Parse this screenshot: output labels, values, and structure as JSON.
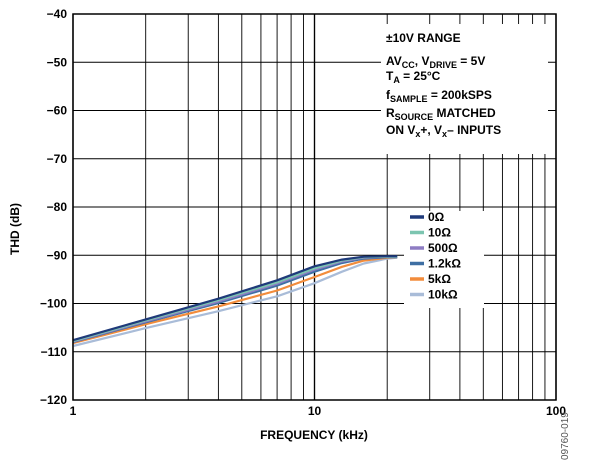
{
  "chart_data": {
    "type": "line",
    "title": "",
    "xlabel": "FREQUENCY (kHz)",
    "ylabel": "THD (dB)",
    "xscale": "log",
    "xlim": [
      1,
      100
    ],
    "ylim": [
      -120,
      -40
    ],
    "grid": true,
    "x_tick_labels": [
      "1",
      "10",
      "100"
    ],
    "y_ticks": [
      -40,
      -50,
      -60,
      -70,
      -80,
      -90,
      -100,
      -110,
      -120
    ],
    "y_tick_labels": [
      "−40",
      "−50",
      "−60",
      "−70",
      "−80",
      "−90",
      "−100",
      "−110",
      "−120"
    ],
    "annotation": {
      "line1": "±10V RANGE",
      "line2_a": "AV",
      "line2_sub1": "CC",
      "line2_b": ", V",
      "line2_sub2": "DRIVE",
      "line2_c": " = 5V",
      "line3_a": "T",
      "line3_sub": "A",
      "line3_b": " = 25°C",
      "line4_a": "f",
      "line4_sub": "SAMPLE",
      "line4_b": " = 200kSPS",
      "line5_a": "R",
      "line5_sub": "SOURCE",
      "line5_b": " MATCHED",
      "line6_a": "ON V",
      "line6_sub1": "x",
      "line6_b": "+,  V",
      "line6_sub2": "x",
      "line6_c": "– INPUTS"
    },
    "legend_position": "right",
    "series": [
      {
        "name": "0Ω",
        "color": "#1f3a7a",
        "x": [
          1,
          2,
          4,
          7,
          10,
          13,
          16,
          20,
          22
        ],
        "y": [
          -107.6,
          -103.3,
          -99.0,
          -95.2,
          -92.3,
          -90.9,
          -90.3,
          -90.2,
          -90.2
        ]
      },
      {
        "name": "10Ω",
        "color": "#7cc5b0",
        "x": [
          1,
          2,
          4,
          7,
          10,
          13,
          16,
          20,
          22
        ],
        "y": [
          -107.8,
          -103.5,
          -99.3,
          -95.6,
          -92.7,
          -91.1,
          -90.4,
          -90.3,
          -90.3
        ]
      },
      {
        "name": "500Ω",
        "color": "#8e7cc3",
        "x": [
          1,
          2,
          4,
          7,
          10,
          13,
          16,
          20,
          22
        ],
        "y": [
          -107.9,
          -103.7,
          -99.6,
          -95.9,
          -93.0,
          -91.3,
          -90.5,
          -90.3,
          -90.3
        ]
      },
      {
        "name": "1.2kΩ",
        "color": "#3e6fa3",
        "x": [
          1,
          2,
          4,
          7,
          10,
          13,
          16,
          20,
          22
        ],
        "y": [
          -108.0,
          -103.9,
          -99.9,
          -96.3,
          -93.4,
          -91.6,
          -90.7,
          -90.4,
          -90.4
        ]
      },
      {
        "name": "5kΩ",
        "color": "#f28c3c",
        "x": [
          1,
          2,
          4,
          7,
          10,
          13,
          16,
          20,
          22
        ],
        "y": [
          -108.2,
          -104.3,
          -100.6,
          -97.3,
          -94.5,
          -92.4,
          -91.1,
          -90.5,
          -90.4
        ]
      },
      {
        "name": "10kΩ",
        "color": "#a9bcd8",
        "x": [
          1,
          2,
          4,
          7,
          10,
          13,
          16,
          20,
          22
        ],
        "y": [
          -108.8,
          -105.1,
          -101.6,
          -98.5,
          -95.8,
          -93.4,
          -91.7,
          -90.7,
          -90.5
        ]
      }
    ]
  },
  "figure_id": "09760-019"
}
